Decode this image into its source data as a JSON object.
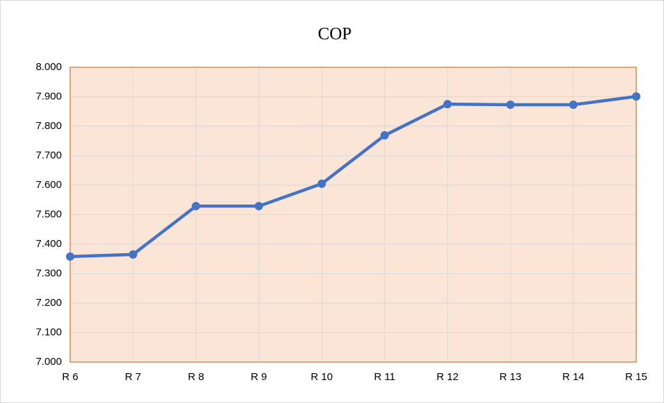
{
  "chart_data": {
    "type": "line",
    "title": "COP",
    "categories": [
      "R 6",
      "R 7",
      "R 8",
      "R 9",
      "R 10",
      "R 11",
      "R 12",
      "R 13",
      "R 14",
      "R 15"
    ],
    "series": [
      {
        "name": "COP",
        "color": "#4472c4",
        "values": [
          7.358,
          7.365,
          7.529,
          7.529,
          7.605,
          7.769,
          7.875,
          7.873,
          7.873,
          7.901
        ]
      }
    ],
    "ylim": [
      7,
      8
    ],
    "yticks": [
      {
        "value": 7,
        "label": "7.000"
      },
      {
        "value": 7.1,
        "label": "7.100"
      },
      {
        "value": 7.2,
        "label": "7.200"
      },
      {
        "value": 7.3,
        "label": "7.300"
      },
      {
        "value": 7.4,
        "label": "7.400"
      },
      {
        "value": 7.5,
        "label": "7.500"
      },
      {
        "value": 7.6,
        "label": "7.600"
      },
      {
        "value": 7.7,
        "label": "7.700"
      },
      {
        "value": 7.8,
        "label": "7.800"
      },
      {
        "value": 7.9,
        "label": "7.900"
      },
      {
        "value": 8,
        "label": "8.000"
      }
    ],
    "grid": true,
    "plot_background": "#fbe5d6",
    "plot_border": "#c55a11"
  }
}
